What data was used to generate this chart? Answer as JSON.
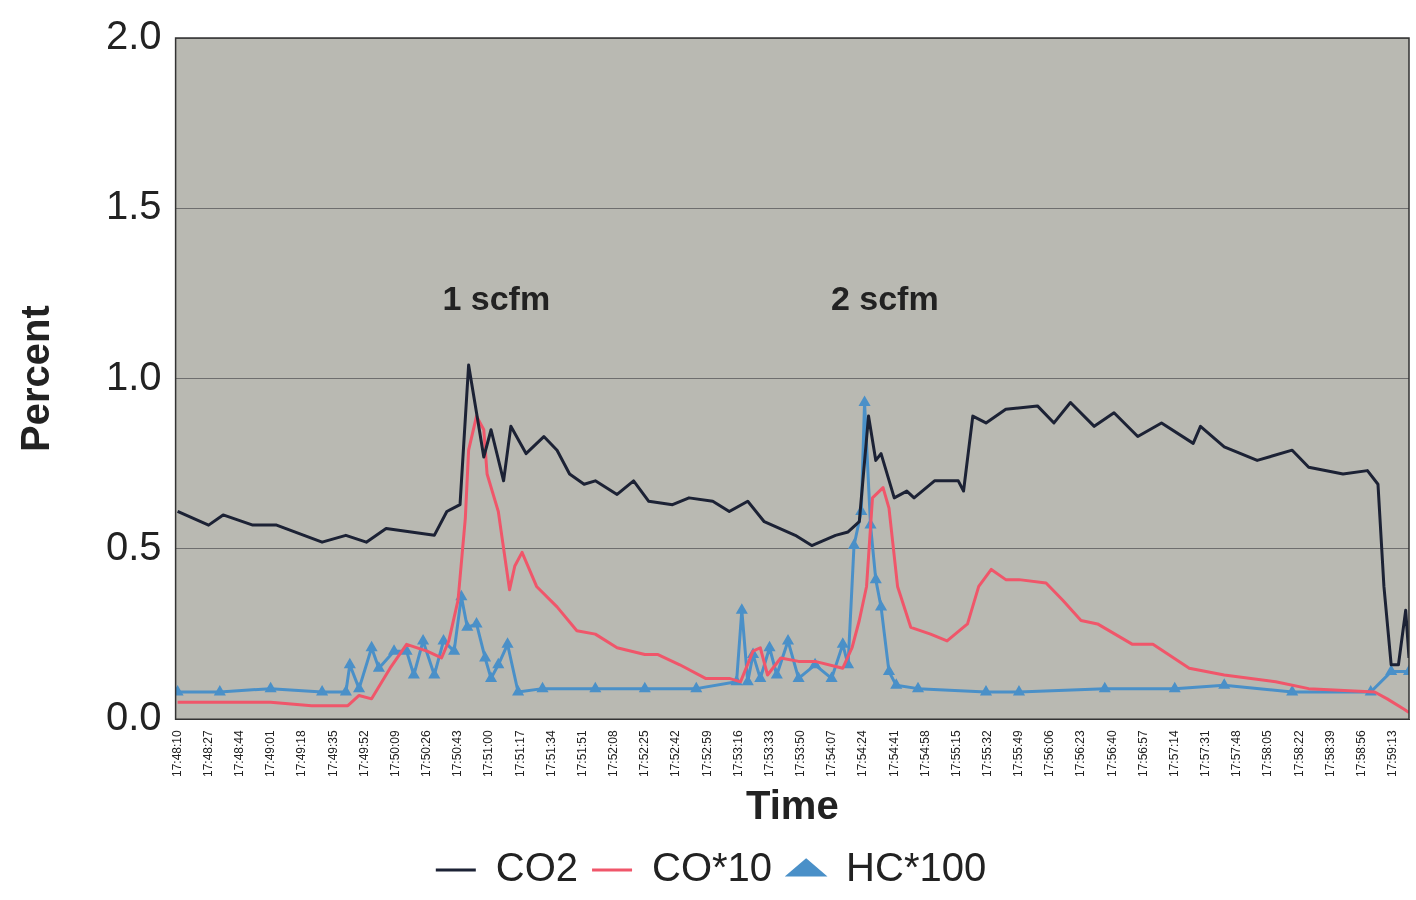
{
  "chart_data": {
    "type": "line",
    "xlabel": "Time",
    "ylabel": "Percent",
    "xlim": [
      17.8025,
      17.9894
    ],
    "ylim": [
      0,
      2
    ],
    "yticks": [
      {
        "value": 0,
        "label": "0.0"
      },
      {
        "value": 0.5,
        "label": "0.5"
      },
      {
        "value": 1,
        "label": "1.0"
      },
      {
        "value": 1.5,
        "label": "1.5"
      },
      {
        "value": 2,
        "label": "2.0"
      }
    ],
    "xticks": [
      {
        "value": 17.80278,
        "label": "17:48:10"
      },
      {
        "value": 17.8075,
        "label": "17:48:27"
      },
      {
        "value": 17.81222,
        "label": "17:48:44"
      },
      {
        "value": 17.81694,
        "label": "17:49:01"
      },
      {
        "value": 17.82167,
        "label": "17:49:18"
      },
      {
        "value": 17.82639,
        "label": "17:49:35"
      },
      {
        "value": 17.83111,
        "label": "17:49:52"
      },
      {
        "value": 17.83583,
        "label": "17:50:09"
      },
      {
        "value": 17.84056,
        "label": "17:50:26"
      },
      {
        "value": 17.84528,
        "label": "17:50:43"
      },
      {
        "value": 17.85,
        "label": "17:51:00"
      },
      {
        "value": 17.85472,
        "label": "17:51:17"
      },
      {
        "value": 17.85944,
        "label": "17:51:34"
      },
      {
        "value": 17.86417,
        "label": "17:51:51"
      },
      {
        "value": 17.86889,
        "label": "17:52:08"
      },
      {
        "value": 17.87361,
        "label": "17:52:25"
      },
      {
        "value": 17.87833,
        "label": "17:52:42"
      },
      {
        "value": 17.88306,
        "label": "17:52:59"
      },
      {
        "value": 17.88778,
        "label": "17:53:16"
      },
      {
        "value": 17.8925,
        "label": "17:53:33"
      },
      {
        "value": 17.89722,
        "label": "17:53:50"
      },
      {
        "value": 17.90194,
        "label": "17:54:07"
      },
      {
        "value": 17.90667,
        "label": "17:54:24"
      },
      {
        "value": 17.91139,
        "label": "17:54:41"
      },
      {
        "value": 17.91611,
        "label": "17:54:58"
      },
      {
        "value": 17.92083,
        "label": "17:55:15"
      },
      {
        "value": 17.92556,
        "label": "17:55:32"
      },
      {
        "value": 17.93028,
        "label": "17:55:49"
      },
      {
        "value": 17.935,
        "label": "17:56:06"
      },
      {
        "value": 17.93972,
        "label": "17:56:23"
      },
      {
        "value": 17.94444,
        "label": "17:56:40"
      },
      {
        "value": 17.94917,
        "label": "17:56:57"
      },
      {
        "value": 17.95389,
        "label": "17:57:14"
      },
      {
        "value": 17.95861,
        "label": "17:57:31"
      },
      {
        "value": 17.96333,
        "label": "17:57:48"
      },
      {
        "value": 17.96806,
        "label": "17:58:05"
      },
      {
        "value": 17.97278,
        "label": "17:58:22"
      },
      {
        "value": 17.9775,
        "label": "17:58:39"
      },
      {
        "value": 17.98222,
        "label": "17:58:56"
      },
      {
        "value": 17.98694,
        "label": "17:59:13"
      }
    ],
    "grid": "y",
    "legend": "bottom",
    "line_style": "solid",
    "annotations": [
      "1 scfm",
      "2 scfm"
    ],
    "series": [
      {
        "name": "CO2",
        "color": "#1c2235",
        "x": [
          17.8028,
          17.8075,
          17.8097,
          17.8142,
          17.8178,
          17.8247,
          17.8283,
          17.8314,
          17.8344,
          17.8417,
          17.8436,
          17.8456,
          17.8469,
          17.8481,
          17.8492,
          17.8503,
          17.8522,
          17.8533,
          17.8556,
          17.8583,
          17.8603,
          17.8622,
          17.8644,
          17.8661,
          17.8694,
          17.8719,
          17.8742,
          17.8778,
          17.8803,
          17.8839,
          17.8864,
          17.8892,
          17.8917,
          17.8964,
          17.8989,
          17.9025,
          17.9044,
          17.9061,
          17.9075,
          17.9086,
          17.9094,
          17.9114,
          17.9133,
          17.9144,
          17.9175,
          17.9211,
          17.9219,
          17.9233,
          17.9253,
          17.9283,
          17.9331,
          17.9356,
          17.9381,
          17.9417,
          17.9447,
          17.9483,
          17.9519,
          17.9567,
          17.9578,
          17.9614,
          17.9664,
          17.9717,
          17.9742,
          17.9794,
          17.9831,
          17.9847,
          17.9856,
          17.9867,
          17.9878,
          17.9889,
          17.9894
        ],
        "values": [
          0.61,
          0.57,
          0.6,
          0.57,
          0.57,
          0.52,
          0.54,
          0.52,
          0.56,
          0.54,
          0.61,
          0.63,
          1.04,
          0.9,
          0.77,
          0.85,
          0.7,
          0.86,
          0.78,
          0.83,
          0.79,
          0.72,
          0.69,
          0.7,
          0.66,
          0.7,
          0.64,
          0.63,
          0.65,
          0.64,
          0.61,
          0.64,
          0.58,
          0.54,
          0.51,
          0.54,
          0.55,
          0.58,
          0.89,
          0.76,
          0.78,
          0.65,
          0.67,
          0.65,
          0.7,
          0.7,
          0.67,
          0.89,
          0.87,
          0.91,
          0.92,
          0.87,
          0.93,
          0.86,
          0.9,
          0.83,
          0.87,
          0.81,
          0.86,
          0.8,
          0.76,
          0.79,
          0.74,
          0.72,
          0.73,
          0.69,
          0.39,
          0.16,
          0.16,
          0.32,
          0.18
        ]
      },
      {
        "name": "CO*10",
        "color": "#f0566a",
        "x": [
          17.8028,
          17.8092,
          17.8169,
          17.8231,
          17.8286,
          17.8303,
          17.8322,
          17.835,
          17.8375,
          17.8406,
          17.8428,
          17.8439,
          17.8453,
          17.8464,
          17.8469,
          17.8481,
          17.8492,
          17.8497,
          17.8514,
          17.8531,
          17.8539,
          17.855,
          17.8572,
          17.8603,
          17.8633,
          17.8661,
          17.8694,
          17.8736,
          17.8756,
          17.8789,
          17.8828,
          17.8864,
          17.8881,
          17.89,
          17.8911,
          17.8922,
          17.8942,
          17.8969,
          17.8994,
          17.9036,
          17.905,
          17.9061,
          17.9072,
          17.9081,
          17.9097,
          17.9106,
          17.9119,
          17.9139,
          17.9169,
          17.9194,
          17.9225,
          17.9242,
          17.9261,
          17.9283,
          17.9303,
          17.9344,
          17.9369,
          17.9397,
          17.9422,
          17.9475,
          17.9506,
          17.9561,
          17.9614,
          17.9692,
          17.9742,
          17.9842,
          17.9861,
          17.9886,
          17.9894
        ],
        "values": [
          0.05,
          0.05,
          0.05,
          0.04,
          0.04,
          0.07,
          0.06,
          0.15,
          0.22,
          0.2,
          0.18,
          0.23,
          0.35,
          0.59,
          0.79,
          0.89,
          0.85,
          0.72,
          0.61,
          0.38,
          0.45,
          0.49,
          0.39,
          0.33,
          0.26,
          0.25,
          0.21,
          0.19,
          0.19,
          0.16,
          0.12,
          0.12,
          0.11,
          0.2,
          0.21,
          0.13,
          0.18,
          0.17,
          0.17,
          0.15,
          0.21,
          0.29,
          0.39,
          0.65,
          0.68,
          0.62,
          0.39,
          0.27,
          0.25,
          0.23,
          0.28,
          0.39,
          0.44,
          0.41,
          0.41,
          0.4,
          0.35,
          0.29,
          0.28,
          0.22,
          0.22,
          0.15,
          0.13,
          0.11,
          0.09,
          0.08,
          0.06,
          0.03,
          0.02
        ]
      },
      {
        "name": "HC*100",
        "color": "#4a90c8",
        "marker": "triangle",
        "x": [
          17.8028,
          17.8092,
          17.8169,
          17.8247,
          17.8283,
          17.8289,
          17.8303,
          17.8322,
          17.8333,
          17.8356,
          17.8375,
          17.8386,
          17.84,
          17.8417,
          17.8431,
          17.8447,
          17.8458,
          17.8467,
          17.8481,
          17.8494,
          17.8503,
          17.8514,
          17.8528,
          17.8544,
          17.8581,
          17.8661,
          17.8736,
          17.8814,
          17.8875,
          17.8883,
          17.8892,
          17.89,
          17.8911,
          17.8925,
          17.8936,
          17.8953,
          17.8969,
          17.8994,
          17.9019,
          17.9036,
          17.9044,
          17.9053,
          17.9064,
          17.9069,
          17.9078,
          17.9086,
          17.9094,
          17.9106,
          17.9117,
          17.915,
          17.9253,
          17.9303,
          17.9433,
          17.9539,
          17.9614,
          17.9717,
          17.9836,
          17.9867,
          17.9894
        ],
        "values": [
          0.08,
          0.08,
          0.09,
          0.08,
          0.08,
          0.16,
          0.09,
          0.21,
          0.15,
          0.2,
          0.2,
          0.13,
          0.23,
          0.13,
          0.23,
          0.2,
          0.36,
          0.27,
          0.28,
          0.18,
          0.12,
          0.16,
          0.22,
          0.08,
          0.09,
          0.09,
          0.09,
          0.09,
          0.11,
          0.32,
          0.11,
          0.19,
          0.12,
          0.21,
          0.13,
          0.23,
          0.12,
          0.16,
          0.12,
          0.22,
          0.16,
          0.51,
          0.61,
          0.93,
          0.57,
          0.41,
          0.33,
          0.14,
          0.1,
          0.09,
          0.08,
          0.08,
          0.09,
          0.09,
          0.1,
          0.08,
          0.08,
          0.14,
          0.14
        ]
      }
    ]
  }
}
